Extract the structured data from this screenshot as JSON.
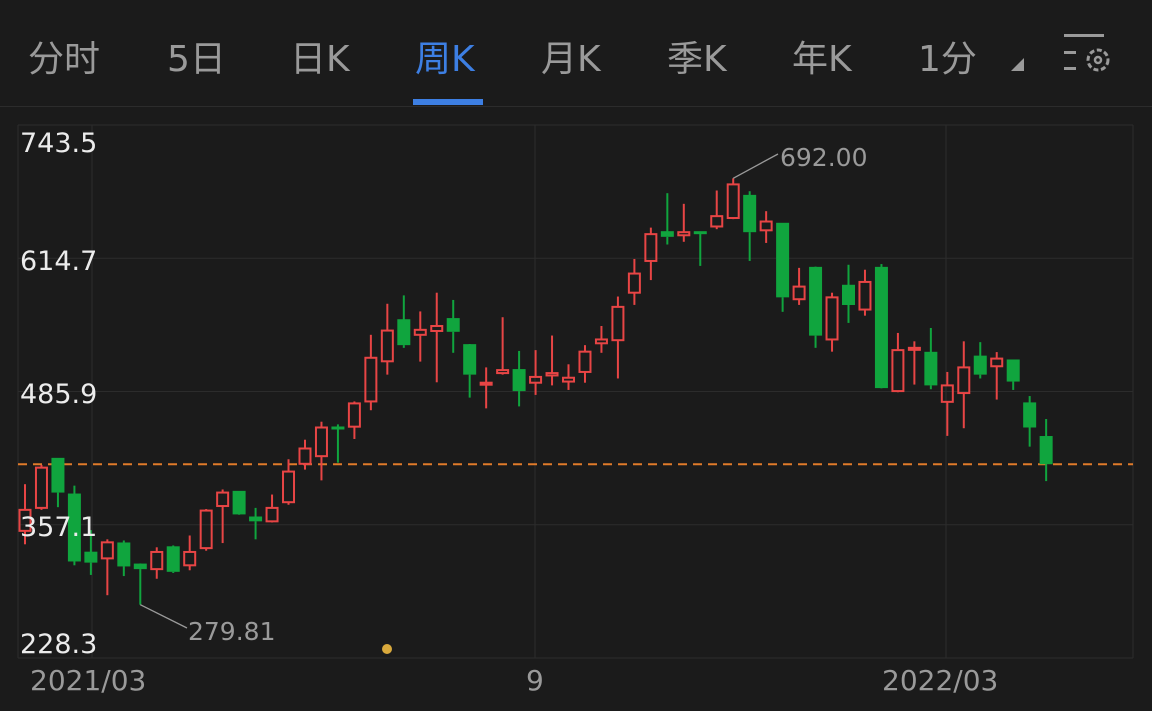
{
  "tabs": [
    {
      "label": "分时",
      "active": false
    },
    {
      "label": "5日",
      "active": false
    },
    {
      "label": "日K",
      "active": false
    },
    {
      "label": "周K",
      "active": true
    },
    {
      "label": "月K",
      "active": false
    },
    {
      "label": "季K",
      "active": false
    },
    {
      "label": "年K",
      "active": false
    },
    {
      "label": "1分",
      "active": false
    }
  ],
  "settings_icon": "chart-settings-gear-icon",
  "colors": {
    "up": "#e84545",
    "down": "#10a53e",
    "accent": "#3d7fe3",
    "current_price_line": "#e07b2a",
    "background": "#1b1b1b"
  },
  "chart_data": {
    "type": "candlestick",
    "y_ticks": [
      "743.5",
      "614.7",
      "485.9",
      "357.1",
      "228.3"
    ],
    "ylim": [
      228.3,
      743.5
    ],
    "x_ticks": [
      "2021/03",
      "9",
      "2022/03"
    ],
    "grid": true,
    "annotations": {
      "max_label": "692.00",
      "min_label": "279.81"
    },
    "current_price": 415.6,
    "ohlc": [
      [
        351.2,
        396.3,
        338.2,
        371.5
      ],
      [
        373.4,
        414.9,
        371.5,
        412.3
      ],
      [
        420.8,
        421.5,
        374.1,
        388.2
      ],
      [
        386.3,
        394.9,
        317.9,
        321.6
      ],
      [
        330.1,
        351.9,
        308.6,
        320.5
      ],
      [
        324.6,
        343.0,
        289.0,
        340.1
      ],
      [
        339.0,
        341.9,
        307.5,
        316.8
      ],
      [
        318.6,
        319.7,
        279.81,
        314.2
      ],
      [
        314.2,
        335.3,
        304.9,
        330.8
      ],
      [
        335.3,
        337.1,
        310.5,
        311.6
      ],
      [
        317.9,
        346.7,
        313.1,
        330.8
      ],
      [
        334.5,
        372.3,
        332.0,
        370.8
      ],
      [
        375.2,
        391.2,
        339.4,
        388.2
      ],
      [
        388.9,
        389.3,
        366.7,
        367.1
      ],
      [
        364.1,
        373.4,
        343.0,
        360.4
      ],
      [
        360.4,
        386.3,
        359.3,
        373.4
      ],
      [
        378.9,
        420.4,
        376.4,
        408.5
      ],
      [
        416.0,
        439.3,
        410.4,
        430.8
      ],
      [
        423.4,
        456.7,
        400.0,
        451.1
      ],
      [
        451.1,
        454.1,
        417.1,
        449.6
      ],
      [
        451.9,
        476.3,
        440.0,
        474.4
      ],
      [
        476.3,
        540.7,
        467.8,
        518.5
      ],
      [
        515.1,
        570.7,
        502.2,
        544.8
      ],
      [
        554.8,
        578.8,
        528.1,
        530.7
      ],
      [
        540.7,
        563.3,
        514.8,
        545.5
      ],
      [
        544.4,
        581.4,
        494.8,
        549.2
      ],
      [
        555.9,
        574.4,
        523.3,
        543.6
      ],
      [
        530.7,
        531.8,
        480.0,
        502.2
      ],
      [
        492.9,
        509.2,
        469.6,
        494.4
      ],
      [
        503.7,
        557.7,
        502.2,
        506.6
      ],
      [
        506.6,
        525.1,
        471.5,
        486.3
      ],
      [
        494.4,
        525.9,
        482.6,
        500.0
      ],
      [
        501.4,
        540.0,
        491.8,
        503.7
      ],
      [
        495.5,
        512.2,
        487.4,
        499.2
      ],
      [
        504.8,
        530.7,
        494.4,
        524.4
      ],
      [
        532.5,
        549.2,
        523.3,
        536.2
      ],
      [
        535.5,
        577.7,
        498.5,
        567.7
      ],
      [
        581.4,
        614.0,
        569.6,
        599.9
      ],
      [
        612.1,
        644.3,
        593.6,
        638.0
      ],
      [
        639.9,
        677.6,
        628.0,
        635.4
      ],
      [
        636.9,
        667.3,
        630.6,
        639.9
      ],
      [
        639.9,
        640.6,
        607.3,
        638.8
      ],
      [
        645.4,
        680.2,
        642.8,
        655.4
      ],
      [
        653.6,
        692.0,
        652.5,
        686.1
      ],
      [
        675.0,
        679.5,
        612.1,
        639.9
      ],
      [
        641.7,
        660.2,
        629.5,
        650.2
      ],
      [
        648.0,
        648.4,
        562.9,
        576.9
      ],
      [
        575.1,
        605.4,
        569.6,
        587.3
      ],
      [
        605.4,
        606.6,
        528.1,
        539.9
      ],
      [
        536.2,
        581.4,
        524.4,
        576.9
      ],
      [
        588.1,
        608.4,
        552.2,
        569.5
      ],
      [
        565.1,
        603.6,
        559.2,
        591.8
      ],
      [
        605.4,
        609.1,
        488.9,
        489.2
      ],
      [
        486.3,
        542.5,
        485.2,
        525.9
      ],
      [
        527.0,
        534.4,
        492.6,
        528.1
      ],
      [
        523.3,
        547.3,
        488.1,
        491.8
      ],
      [
        475.9,
        504.8,
        443.0,
        491.8
      ],
      [
        484.4,
        534.4,
        450.4,
        509.2
      ],
      [
        519.6,
        533.6,
        498.5,
        502.2
      ],
      [
        510.3,
        524.0,
        478.1,
        517.7
      ],
      [
        515.9,
        516.6,
        487.4,
        495.5
      ],
      [
        474.4,
        481.5,
        432.6,
        451.1
      ],
      [
        441.9,
        459.3,
        399.3,
        415.6
      ]
    ]
  }
}
